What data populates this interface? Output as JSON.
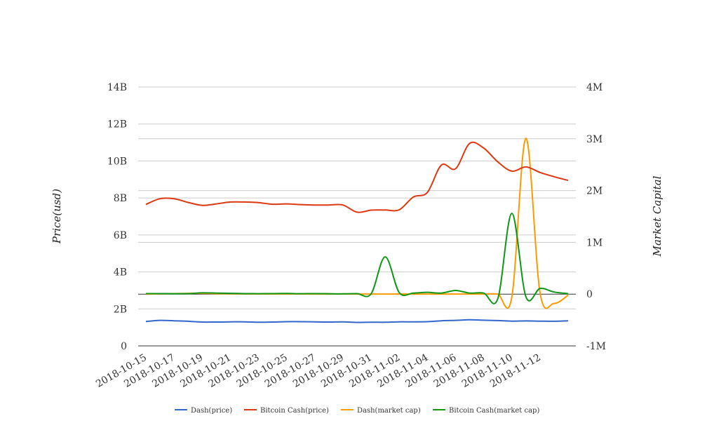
{
  "chart_data": {
    "type": "line",
    "title": "",
    "xlabel": "",
    "ylabel_left": "Price(usd)",
    "ylabel_right": "Market Capital",
    "left_axis": {
      "range": [
        0,
        14000000000
      ],
      "ticks": [
        0,
        2000000000,
        4000000000,
        6000000000,
        8000000000,
        10000000000,
        12000000000,
        14000000000
      ],
      "tick_labels": [
        "0",
        "2B",
        "4B",
        "6B",
        "8B",
        "10B",
        "12B",
        "14B"
      ]
    },
    "right_axis": {
      "range": [
        -1000000,
        4000000
      ],
      "ticks": [
        -1000000,
        0,
        1000000,
        2000000,
        3000000,
        4000000
      ],
      "tick_labels": [
        "-1M",
        "0",
        "1M",
        "2M",
        "3M",
        "4M"
      ]
    },
    "x_tick_labels": [
      "2018-10-15",
      "2018-10-17",
      "2018-10-19",
      "2018-10-21",
      "2018-10-23",
      "2018-10-25",
      "2018-10-27",
      "2018-10-29",
      "2018-10-31",
      "2018-11-02",
      "2018-11-04",
      "2018-11-06",
      "2018-11-08",
      "2018-11-10",
      "2018-11-12"
    ],
    "x": [
      "2018-10-15",
      "2018-10-16",
      "2018-10-17",
      "2018-10-18",
      "2018-10-19",
      "2018-10-20",
      "2018-10-21",
      "2018-10-22",
      "2018-10-23",
      "2018-10-24",
      "2018-10-25",
      "2018-10-26",
      "2018-10-27",
      "2018-10-28",
      "2018-10-29",
      "2018-10-30",
      "2018-10-31",
      "2018-11-01",
      "2018-11-02",
      "2018-11-03",
      "2018-11-04",
      "2018-11-05",
      "2018-11-06",
      "2018-11-07",
      "2018-11-08",
      "2018-11-09",
      "2018-11-10",
      "2018-11-11",
      "2018-11-12",
      "2018-11-13",
      "2018-11-14"
    ],
    "grid": true,
    "legend_position": "bottom",
    "series": [
      {
        "name": "Dash(price)",
        "axis": "left",
        "color": "#3366cc",
        "values": [
          1320000000,
          1380000000,
          1360000000,
          1330000000,
          1290000000,
          1290000000,
          1300000000,
          1300000000,
          1280000000,
          1290000000,
          1310000000,
          1310000000,
          1300000000,
          1290000000,
          1300000000,
          1270000000,
          1280000000,
          1280000000,
          1300000000,
          1300000000,
          1310000000,
          1360000000,
          1380000000,
          1410000000,
          1390000000,
          1370000000,
          1340000000,
          1350000000,
          1340000000,
          1330000000,
          1360000000
        ]
      },
      {
        "name": "Bitcoin Cash(price)",
        "axis": "left",
        "color": "#dc3912",
        "values": [
          7650000000,
          7960000000,
          7960000000,
          7760000000,
          7600000000,
          7680000000,
          7780000000,
          7780000000,
          7750000000,
          7660000000,
          7680000000,
          7640000000,
          7620000000,
          7620000000,
          7620000000,
          7230000000,
          7340000000,
          7350000000,
          7360000000,
          8050000000,
          8300000000,
          9780000000,
          9580000000,
          10950000000,
          10700000000,
          9950000000,
          9450000000,
          9680000000,
          9380000000,
          9150000000,
          8950000000
        ]
      },
      {
        "name": "Dash(market cap)",
        "axis": "right",
        "color": "#ff9900",
        "values": [
          0,
          5000,
          10000,
          15000,
          15000,
          10000,
          8000,
          5000,
          3000,
          3000,
          4000,
          3000,
          2000,
          2000,
          3000,
          2000,
          1000,
          2000,
          1000,
          1000,
          2000,
          1000,
          2000,
          1000,
          1000,
          2000,
          -60000,
          3010000,
          30000,
          -180000,
          -20000
        ]
      },
      {
        "name": "Bitcoin Cash(market cap)",
        "axis": "right",
        "color": "#109618",
        "values": [
          10000,
          10000,
          8000,
          10000,
          25000,
          20000,
          15000,
          10000,
          8000,
          10000,
          12000,
          8000,
          10000,
          8000,
          5000,
          10000,
          5000,
          720000,
          30000,
          20000,
          35000,
          20000,
          70000,
          20000,
          20000,
          -90000,
          1560000,
          -50000,
          110000,
          40000,
          10000
        ]
      }
    ]
  }
}
